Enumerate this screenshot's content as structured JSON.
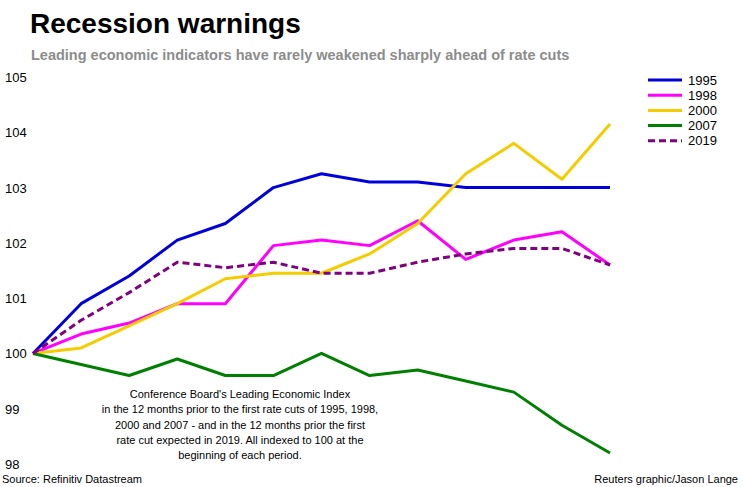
{
  "chart_data": {
    "type": "line",
    "title": "Recession warnings",
    "subtitle": "Leading economic indicators have rarely weakened sharply ahead of rate cuts",
    "annotation": [
      "Conference Board's Leading Economic Index",
      "in the 12 months prior to the first rate cuts of 1995, 1998,",
      "2000 and 2007 - and in the 12 months prior the first",
      "rate cut expected in 2019. All indexed to 100 at the",
      "beginning of each period."
    ],
    "source": "Source: Refinitiv Datastream",
    "credit": "Reuters graphic/Jason Lange",
    "x": [
      0,
      1,
      2,
      3,
      4,
      5,
      6,
      7,
      8,
      9,
      10,
      11,
      12
    ],
    "xlim": [
      0,
      12
    ],
    "ylim": [
      98,
      105
    ],
    "yticks": [
      98,
      99,
      100,
      101,
      102,
      103,
      104,
      105
    ],
    "tick_labels": "y",
    "grid": false,
    "legend": "top-right",
    "series": [
      {
        "name": "1995",
        "color": "#0000dd",
        "line_style": "solid",
        "values": [
          100,
          100.9,
          101.4,
          102.05,
          102.35,
          103,
          103.25,
          103.1,
          103.1,
          103,
          103,
          103,
          103
        ]
      },
      {
        "name": "1998",
        "color": "#ff00ff",
        "line_style": "solid",
        "values": [
          100,
          100.35,
          100.55,
          100.9,
          100.9,
          101.95,
          102.05,
          101.95,
          102.4,
          101.7,
          102.05,
          102.2,
          101.6
        ]
      },
      {
        "name": "2000",
        "color": "#f5cc00",
        "line_style": "solid",
        "values": [
          100,
          100.1,
          100.5,
          100.9,
          101.35,
          101.45,
          101.45,
          101.8,
          102.35,
          103.25,
          103.8,
          103.15,
          104.15
        ]
      },
      {
        "name": "2007",
        "color": "#008000",
        "line_style": "solid",
        "values": [
          100,
          99.8,
          99.6,
          99.9,
          99.6,
          99.6,
          100,
          99.6,
          99.7,
          99.5,
          99.3,
          98.7,
          98.2
        ]
      },
      {
        "name": "2019",
        "color": "#800080",
        "line_style": "dashed",
        "values": [
          100,
          100.6,
          101.1,
          101.65,
          101.55,
          101.65,
          101.45,
          101.45,
          101.65,
          101.8,
          101.9,
          101.9,
          101.6
        ]
      }
    ]
  }
}
